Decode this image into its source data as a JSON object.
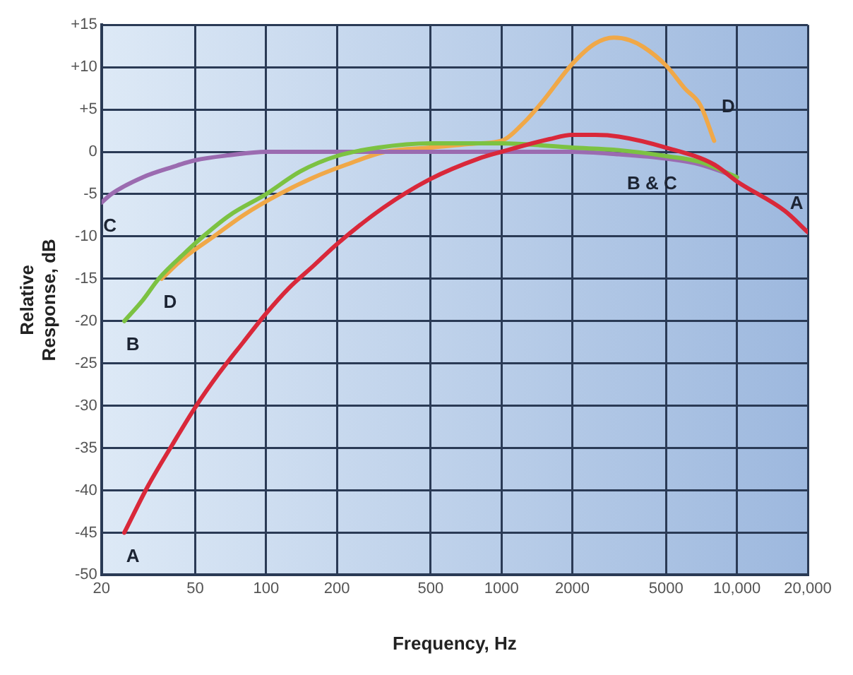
{
  "chart_data": {
    "type": "line",
    "xlabel": "Frequency, Hz",
    "ylabel": "Relative Response, dB",
    "log": "x",
    "grid": true,
    "legend": false,
    "marker": "none",
    "line_style": "solid",
    "xlim": [
      20,
      20000
    ],
    "xticks": [
      20,
      50,
      100,
      200,
      500,
      1000,
      2000,
      5000,
      {
        "value": 10000,
        "label": "10,000"
      },
      {
        "value": 20000,
        "label": "20,000"
      }
    ],
    "ylim": [
      -50,
      15
    ],
    "yticks": [
      -50,
      -45,
      -40,
      -35,
      -30,
      -25,
      -20,
      -15,
      -10,
      -5,
      0,
      {
        "value": 5,
        "label": "+5"
      },
      {
        "value": 10,
        "label": "+10"
      },
      {
        "value": 15,
        "label": "+15"
      }
    ],
    "series": [
      {
        "name": "A",
        "color": "#d9283a",
        "x": [
          25,
          31.5,
          40,
          50,
          63,
          80,
          100,
          125,
          160,
          200,
          315,
          500,
          800,
          1000,
          1600,
          2000,
          2500,
          3150,
          5000,
          8000,
          10000,
          16000,
          20000
        ],
        "values": [
          -45,
          -39.5,
          -34.6,
          -30.2,
          -26.2,
          -22.5,
          -19.1,
          -16.1,
          -13.4,
          -10.9,
          -6.6,
          -3.2,
          -0.8,
          0,
          1.5,
          2,
          2,
          1.8,
          0.5,
          -1.5,
          -3.5,
          -7,
          -9.5
        ]
      },
      {
        "name": "B",
        "color": "#7cc242",
        "x": [
          25,
          30,
          35,
          45,
          54,
          70,
          100,
          140,
          200,
          300,
          500,
          1000,
          2000,
          3150,
          5000,
          7000,
          10000
        ],
        "values": [
          -20,
          -17.5,
          -15,
          -12,
          -10,
          -7.5,
          -5,
          -2.3,
          -0.5,
          0.5,
          1,
          1,
          0.5,
          0.2,
          -0.5,
          -1.2,
          -3
        ]
      },
      {
        "name": "C",
        "color": "#9b6bb0",
        "x": [
          20,
          22,
          30,
          40,
          50,
          70,
          100,
          200,
          500,
          1000,
          2000,
          3150,
          5000,
          7000,
          10000
        ],
        "values": [
          -6,
          -5,
          -3,
          -1.8,
          -1,
          -0.4,
          0,
          0,
          0,
          0,
          0,
          -0.3,
          -0.8,
          -1.5,
          -3
        ]
      },
      {
        "name": "D",
        "color": "#f0a848",
        "x": [
          36,
          45,
          60,
          80,
          114,
          160,
          220,
          320,
          500,
          800,
          1000,
          1250,
          1500,
          2000,
          2500,
          3000,
          3500,
          4000,
          5000,
          6000,
          7000,
          8000
        ],
        "values": [
          -15,
          -12.5,
          -10,
          -7.5,
          -5,
          -3,
          -1.5,
          0,
          0.5,
          1,
          1.3,
          3.5,
          6,
          10.4,
          12.8,
          13.5,
          13.2,
          12.4,
          10.2,
          7.5,
          5.5,
          1.3
        ]
      }
    ],
    "annotations": [
      {
        "text": "A",
        "x": 20000,
        "y": -9.5
      },
      {
        "text": "D",
        "x": 8000,
        "y": 1.3
      },
      {
        "text": "B & C",
        "x": 5000,
        "y": -0.5
      }
    ]
  }
}
